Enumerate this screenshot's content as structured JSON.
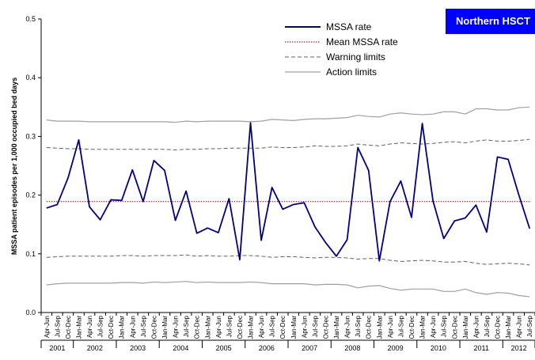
{
  "badge": {
    "label": "Northern HSCT",
    "background": "#0000ff"
  },
  "chart_data": {
    "type": "line",
    "ylabel": "MSSA patient episodes per 1,000 occupied bed days",
    "ylim": [
      0,
      0.5
    ],
    "yticks": [
      "0.0",
      "0.1",
      "0.2",
      "0.3",
      "0.4",
      "0.5"
    ],
    "grid": false,
    "legend_position": "top-right",
    "quarter_labels": [
      "Apr-Jun",
      "Jul-Sep",
      "Oct-Dec",
      "Jan-Mar",
      "Apr-Jun",
      "Jul-Sep",
      "Oct-Dec",
      "Jan-Mar",
      "Apr-Jun",
      "Jul-Sep",
      "Oct-Dec",
      "Jan-Mar",
      "Apr-Jun",
      "Jul-Sep",
      "Oct-Dec",
      "Jan-Mar",
      "Apr-Jun",
      "Jul-Sep",
      "Oct-Dec",
      "Jan-Mar",
      "Apr-Jun",
      "Jul-Sep",
      "Oct-Dec",
      "Jan-Mar",
      "Apr-Jun",
      "Jul-Sep",
      "Oct-Dec",
      "Jan-Mar",
      "Apr-Jun",
      "Jul-Sep",
      "Oct-Dec",
      "Jan-Mar",
      "Apr-Jun",
      "Jul-Sep",
      "Oct-Dec",
      "Jan-Mar",
      "Apr-Jun",
      "Jul-Sep",
      "Oct-Dec",
      "Jan-Mar",
      "Apr-Jun",
      "Jul-Sep",
      "Oct-Dec",
      "Jan-Mar",
      "Apr-Jun",
      "Jul-Sep"
    ],
    "years": [
      {
        "label": "2001",
        "start": 0,
        "end": 2
      },
      {
        "label": "2002",
        "start": 3,
        "end": 6
      },
      {
        "label": "2003",
        "start": 7,
        "end": 10
      },
      {
        "label": "2004",
        "start": 11,
        "end": 14
      },
      {
        "label": "2005",
        "start": 15,
        "end": 18
      },
      {
        "label": "2006",
        "start": 19,
        "end": 22
      },
      {
        "label": "2007",
        "start": 23,
        "end": 26
      },
      {
        "label": "2008",
        "start": 27,
        "end": 30
      },
      {
        "label": "2009",
        "start": 31,
        "end": 34
      },
      {
        "label": "2010",
        "start": 35,
        "end": 38
      },
      {
        "label": "2011",
        "start": 39,
        "end": 42
      },
      {
        "label": "2012",
        "start": 43,
        "end": 45
      }
    ],
    "series": [
      {
        "name": "MSSA rate",
        "style": "solid",
        "color": "#000080",
        "values": [
          0.178,
          0.184,
          0.229,
          0.294,
          0.18,
          0.158,
          0.192,
          0.191,
          0.243,
          0.189,
          0.259,
          0.242,
          0.157,
          0.207,
          0.135,
          0.144,
          0.136,
          0.194,
          0.09,
          0.323,
          0.123,
          0.213,
          0.176,
          0.184,
          0.187,
          0.146,
          0.119,
          0.096,
          0.124,
          0.281,
          0.242,
          0.088,
          0.189,
          0.224,
          0.162,
          0.322,
          0.19,
          0.126,
          0.156,
          0.161,
          0.183,
          0.137,
          0.265,
          0.261,
          0.2,
          0.143
        ]
      },
      {
        "name": "Mean MSSA rate",
        "style": "dotted",
        "color": "#8b0000",
        "values": [
          0.189,
          0.189,
          0.189,
          0.189,
          0.189,
          0.189,
          0.189,
          0.189,
          0.189,
          0.189,
          0.189,
          0.189,
          0.189,
          0.189,
          0.189,
          0.189,
          0.189,
          0.189,
          0.189,
          0.189,
          0.189,
          0.189,
          0.189,
          0.189,
          0.189,
          0.189,
          0.189,
          0.189,
          0.189,
          0.189,
          0.189,
          0.189,
          0.189,
          0.189,
          0.189,
          0.189,
          0.189,
          0.189,
          0.189,
          0.189,
          0.189,
          0.189,
          0.189,
          0.189,
          0.189,
          0.189
        ]
      },
      {
        "name": "Warning limits",
        "style": "dashed",
        "color": "#606060",
        "values": [
          0.281,
          0.28,
          0.279,
          0.279,
          0.278,
          0.278,
          0.278,
          0.278,
          0.278,
          0.278,
          0.278,
          0.278,
          0.277,
          0.278,
          0.278,
          0.279,
          0.279,
          0.28,
          0.28,
          0.28,
          0.28,
          0.282,
          0.281,
          0.281,
          0.282,
          0.284,
          0.283,
          0.283,
          0.284,
          0.287,
          0.285,
          0.284,
          0.287,
          0.289,
          0.288,
          0.287,
          0.288,
          0.29,
          0.291,
          0.289,
          0.292,
          0.294,
          0.292,
          0.292,
          0.293,
          0.295
        ]
      },
      {
        "name": "",
        "style": "dashed",
        "color": "#606060",
        "values": [
          0.094,
          0.095,
          0.096,
          0.096,
          0.096,
          0.096,
          0.096,
          0.097,
          0.097,
          0.096,
          0.097,
          0.097,
          0.097,
          0.098,
          0.096,
          0.097,
          0.096,
          0.096,
          0.097,
          0.097,
          0.096,
          0.094,
          0.095,
          0.095,
          0.094,
          0.093,
          0.094,
          0.094,
          0.093,
          0.091,
          0.092,
          0.092,
          0.089,
          0.087,
          0.088,
          0.089,
          0.088,
          0.086,
          0.086,
          0.087,
          0.084,
          0.082,
          0.083,
          0.084,
          0.083,
          0.081
        ]
      },
      {
        "name": "Action limits",
        "style": "solid",
        "color": "#a0a0a0",
        "values": [
          0.328,
          0.326,
          0.326,
          0.326,
          0.325,
          0.325,
          0.325,
          0.325,
          0.325,
          0.325,
          0.325,
          0.325,
          0.324,
          0.326,
          0.325,
          0.326,
          0.326,
          0.326,
          0.326,
          0.325,
          0.326,
          0.329,
          0.328,
          0.327,
          0.329,
          0.33,
          0.33,
          0.331,
          0.332,
          0.336,
          0.334,
          0.333,
          0.338,
          0.34,
          0.338,
          0.337,
          0.338,
          0.342,
          0.342,
          0.338,
          0.347,
          0.347,
          0.345,
          0.345,
          0.349,
          0.35
        ]
      },
      {
        "name": "",
        "style": "solid",
        "color": "#a0a0a0",
        "values": [
          0.047,
          0.049,
          0.05,
          0.05,
          0.05,
          0.05,
          0.05,
          0.051,
          0.051,
          0.05,
          0.052,
          0.051,
          0.052,
          0.053,
          0.051,
          0.052,
          0.051,
          0.051,
          0.051,
          0.052,
          0.051,
          0.049,
          0.049,
          0.049,
          0.049,
          0.047,
          0.048,
          0.048,
          0.047,
          0.042,
          0.045,
          0.046,
          0.041,
          0.038,
          0.04,
          0.04,
          0.04,
          0.036,
          0.036,
          0.04,
          0.034,
          0.031,
          0.034,
          0.033,
          0.029,
          0.027
        ]
      }
    ]
  }
}
